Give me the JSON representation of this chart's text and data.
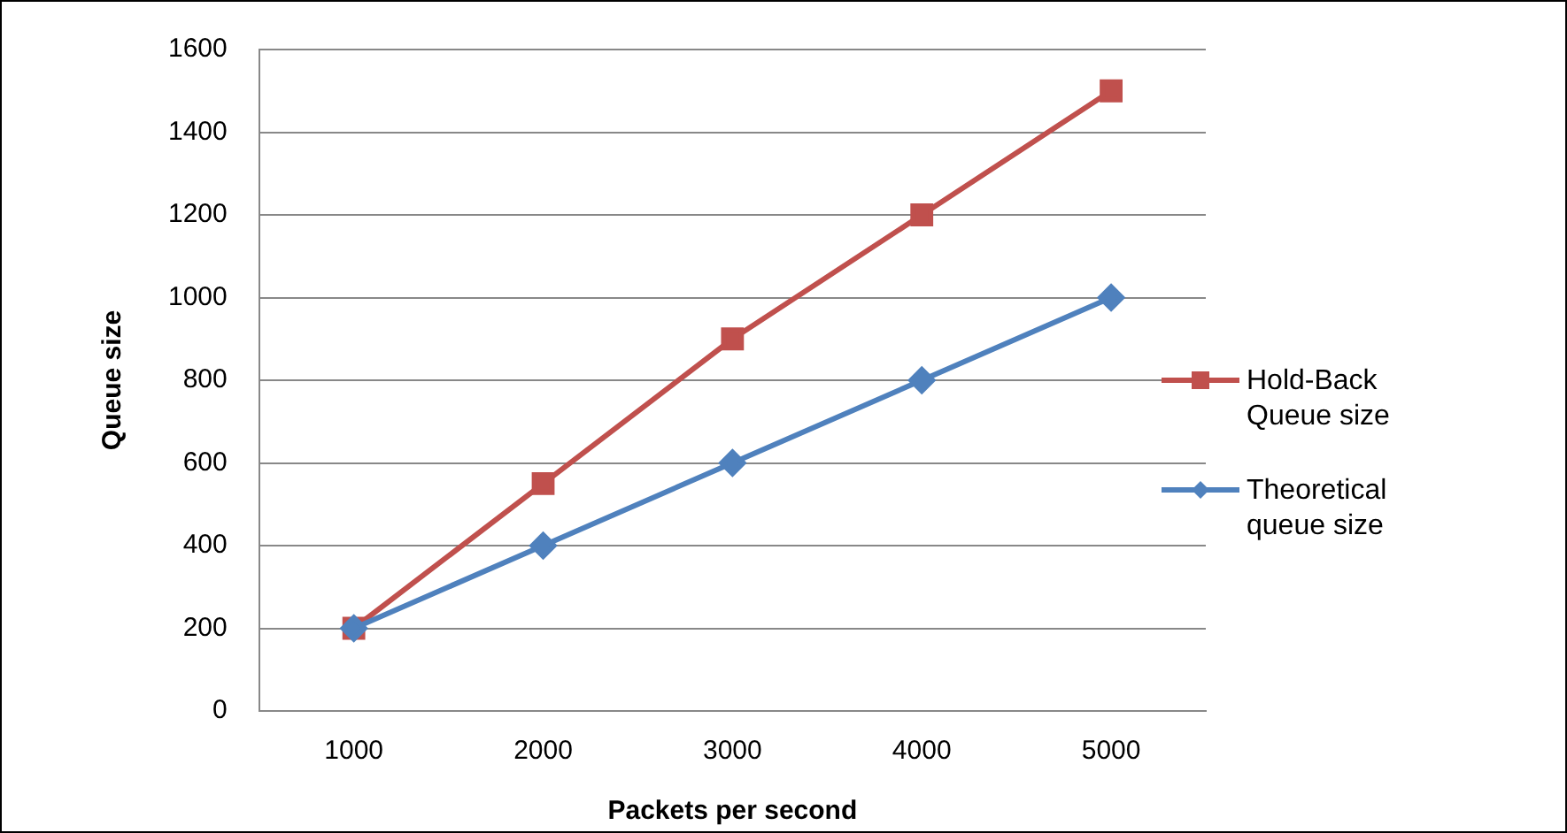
{
  "chart_data": {
    "type": "line",
    "xlabel": "Packets per second",
    "ylabel": "Queue size",
    "categories": [
      "1000",
      "2000",
      "3000",
      "4000",
      "5000"
    ],
    "series": [
      {
        "name": "Hold-Back Queue size",
        "color": "#c0504d",
        "marker": "square",
        "values": [
          200,
          550,
          900,
          1200,
          1500
        ]
      },
      {
        "name": "Theoretical queue size",
        "color": "#4f81bd",
        "marker": "diamond",
        "values": [
          200,
          400,
          600,
          800,
          1000
        ]
      }
    ],
    "ylim": [
      0,
      1600
    ],
    "yticks": [
      0,
      200,
      400,
      600,
      800,
      1000,
      1200,
      1400,
      1600
    ],
    "grid": "y",
    "legend": "right",
    "line_style": "solid"
  }
}
